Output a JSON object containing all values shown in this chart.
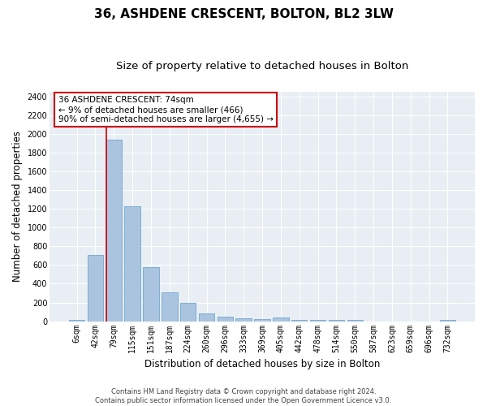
{
  "title": "36, ASHDENE CRESCENT, BOLTON, BL2 3LW",
  "subtitle": "Size of property relative to detached houses in Bolton",
  "xlabel": "Distribution of detached houses by size in Bolton",
  "ylabel": "Number of detached properties",
  "categories": [
    "6sqm",
    "42sqm",
    "79sqm",
    "115sqm",
    "151sqm",
    "187sqm",
    "224sqm",
    "260sqm",
    "296sqm",
    "333sqm",
    "369sqm",
    "405sqm",
    "442sqm",
    "478sqm",
    "514sqm",
    "550sqm",
    "587sqm",
    "623sqm",
    "659sqm",
    "696sqm",
    "732sqm"
  ],
  "values": [
    18,
    710,
    1940,
    1225,
    575,
    305,
    200,
    85,
    50,
    35,
    25,
    40,
    15,
    15,
    15,
    15,
    0,
    0,
    0,
    0,
    18
  ],
  "bar_color": "#aac4e0",
  "bar_edge_color": "#6fa8d0",
  "annotation_text_line1": "36 ASHDENE CRESCENT: 74sqm",
  "annotation_text_line2": "← 9% of detached houses are smaller (466)",
  "annotation_text_line3": "90% of semi-detached houses are larger (4,655) →",
  "annotation_box_facecolor": "#ffffff",
  "annotation_box_edgecolor": "#cc0000",
  "vline_color": "#cc0000",
  "vline_x_index": 2,
  "background_color": "#e8eef4",
  "footer_line1": "Contains HM Land Registry data © Crown copyright and database right 2024.",
  "footer_line2": "Contains public sector information licensed under the Open Government Licence v3.0.",
  "ylim": [
    0,
    2450
  ],
  "yticks": [
    0,
    200,
    400,
    600,
    800,
    1000,
    1200,
    1400,
    1600,
    1800,
    2000,
    2200,
    2400
  ],
  "title_fontsize": 11,
  "subtitle_fontsize": 9.5,
  "xlabel_fontsize": 8.5,
  "ylabel_fontsize": 8.5,
  "tick_fontsize": 7,
  "annotation_fontsize": 7.5,
  "footer_fontsize": 6
}
